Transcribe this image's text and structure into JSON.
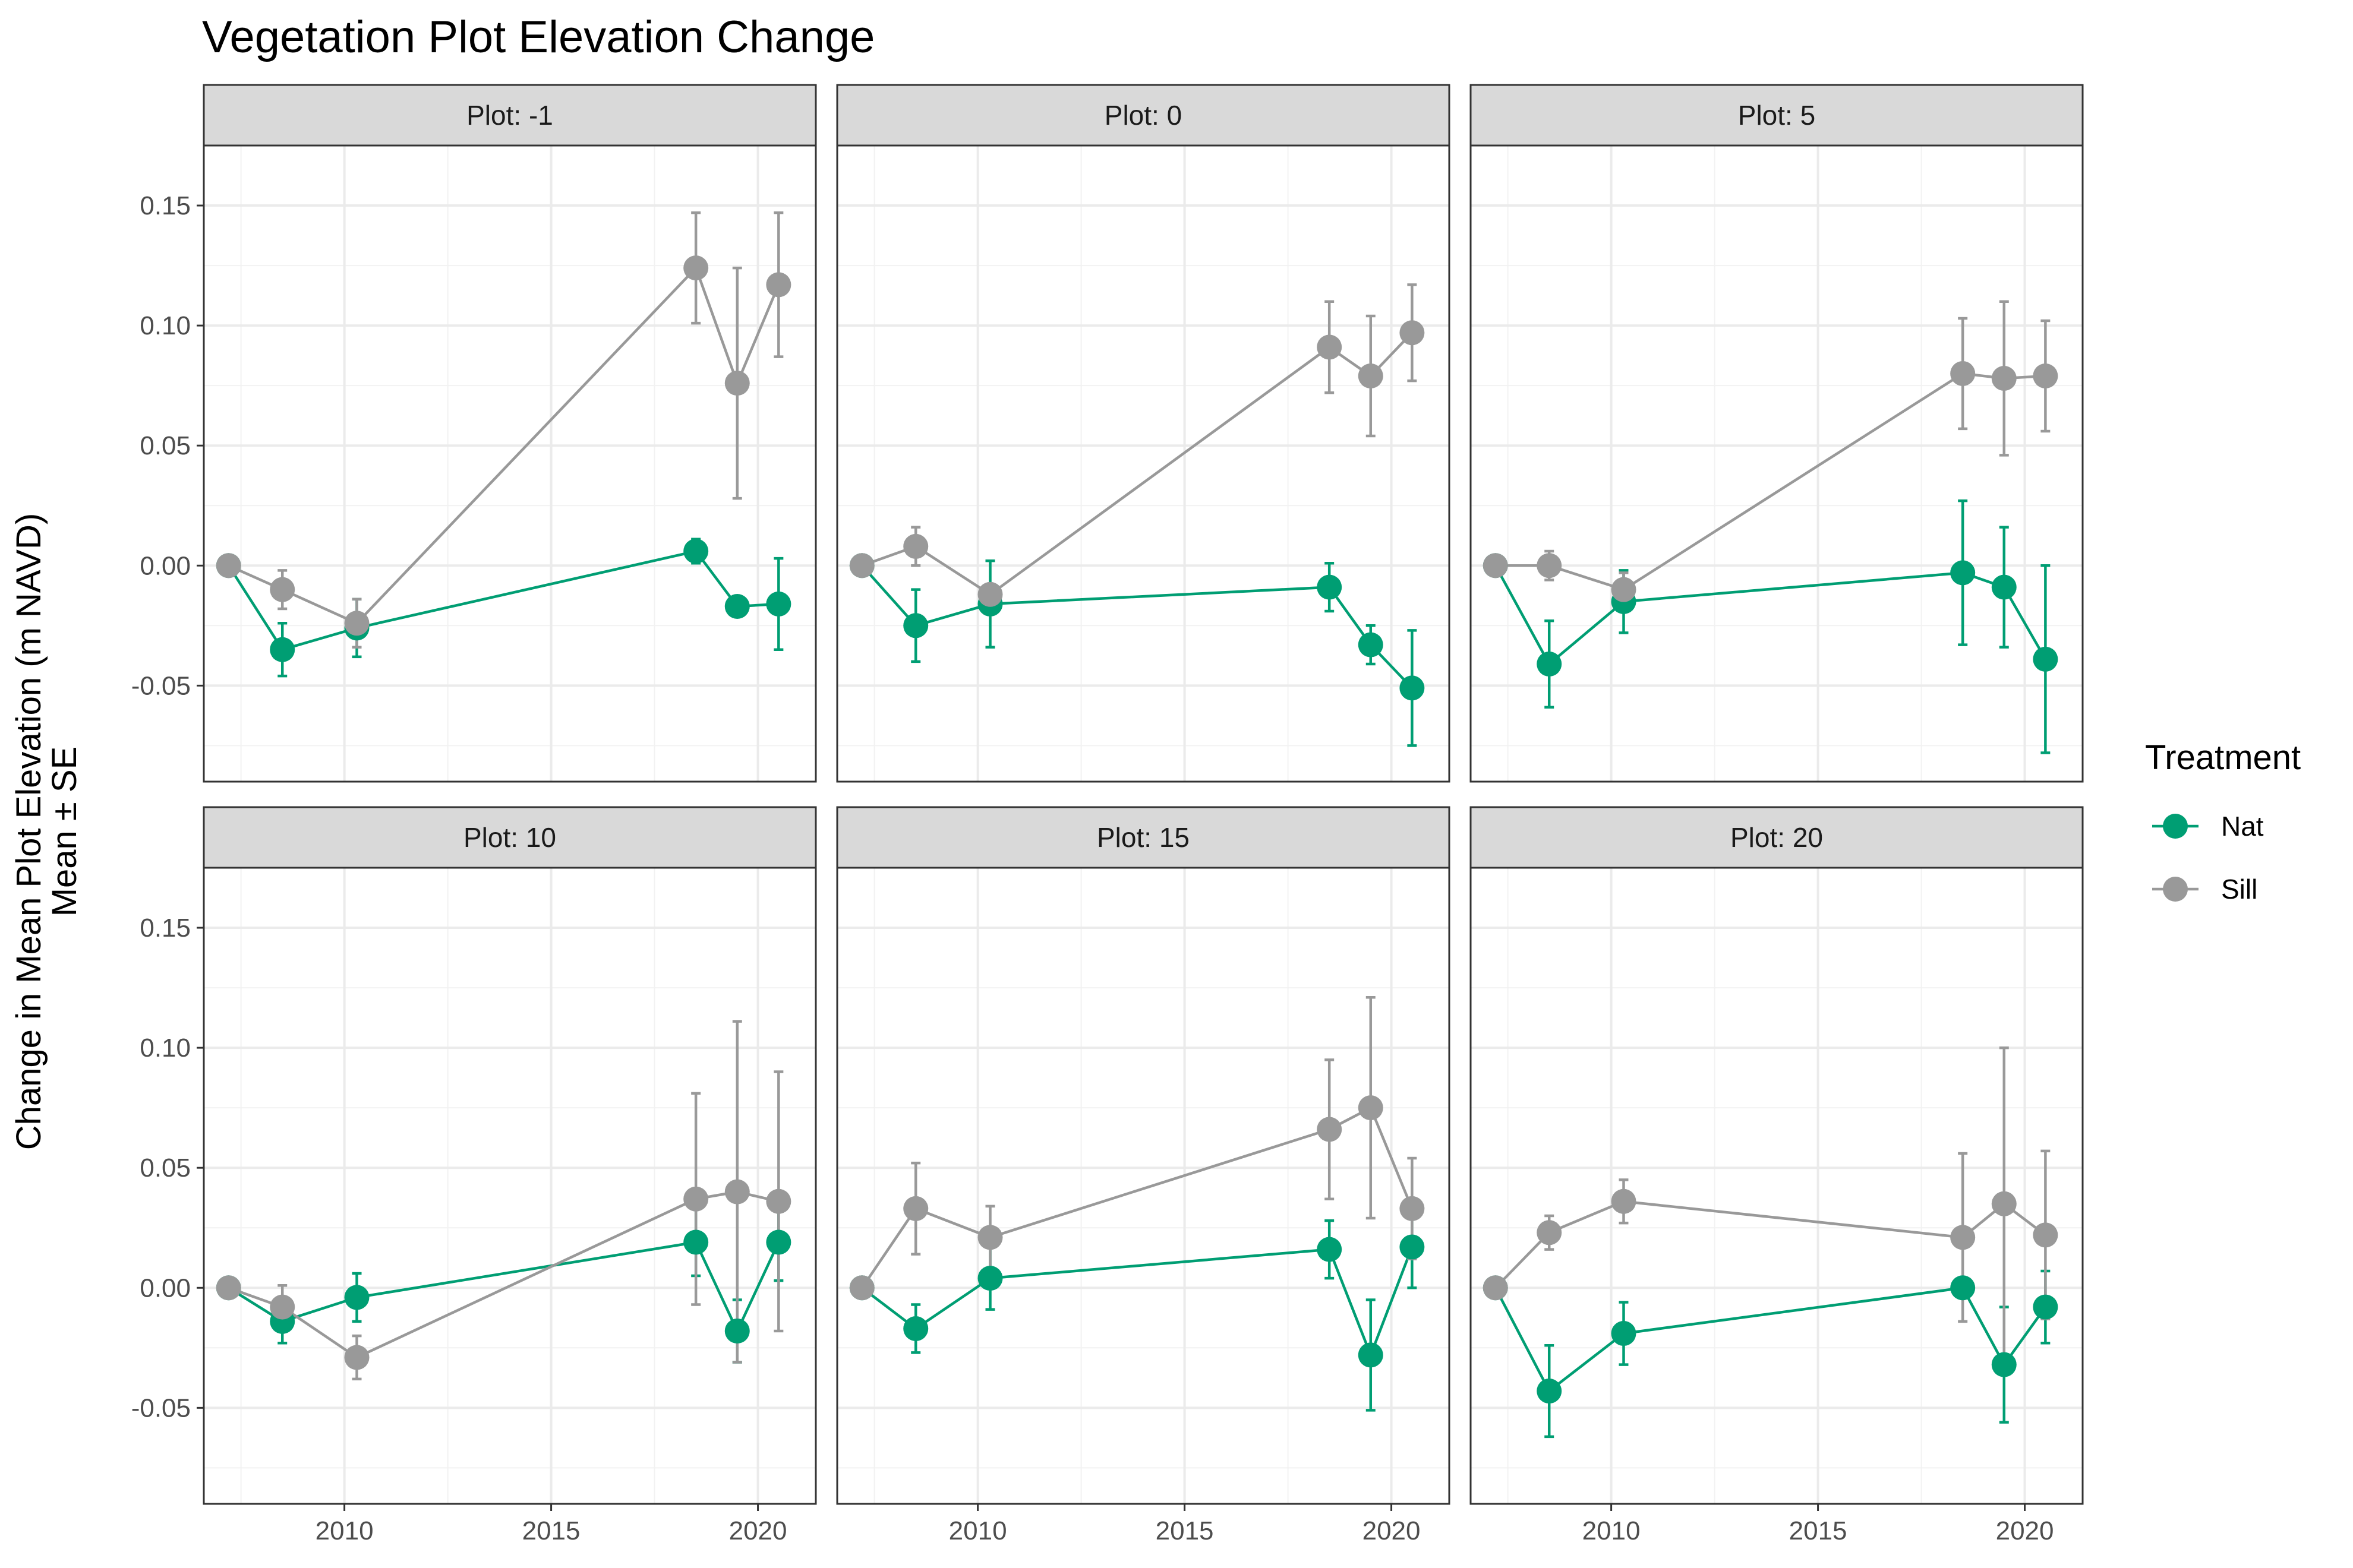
{
  "chart_data": {
    "type": "line",
    "title": "Vegetation Plot Elevation Change",
    "ylabel_line1": "Change in Mean Plot Elevation (m NAVD)",
    "ylabel_line2": "Mean ± SE",
    "xlabel": "",
    "xlim": [
      2006.6,
      2021.4
    ],
    "ylim": [
      -0.09,
      0.175
    ],
    "x_ticks": [
      2010,
      2015,
      2020
    ],
    "x_tick_labels": [
      "2010",
      "2015",
      "2020"
    ],
    "y_ticks": [
      -0.05,
      0.0,
      0.05,
      0.1,
      0.15
    ],
    "y_tick_labels": [
      "-0.05",
      "0.00",
      "0.05",
      "0.10",
      "0.15"
    ],
    "grid": true,
    "legend": {
      "title": "Treatment",
      "position": "right",
      "entries": [
        {
          "name": "Nat",
          "color": "#009E73"
        },
        {
          "name": "Sill",
          "color": "#999999"
        }
      ]
    },
    "x": [
      2007.2,
      2008.5,
      2010.3,
      2018.5,
      2019.5,
      2020.5
    ],
    "panels": [
      {
        "strip": "Plot: -1",
        "series": [
          {
            "name": "Nat",
            "color": "#009E73",
            "values": [
              0.0,
              -0.035,
              -0.026,
              0.006,
              -0.017,
              -0.016
            ],
            "se": [
              0,
              0.011,
              0.012,
              0.005,
              0,
              0.019
            ]
          },
          {
            "name": "Sill",
            "color": "#999999",
            "values": [
              0.0,
              -0.01,
              -0.024,
              0.124,
              0.076,
              0.117
            ],
            "se": [
              0,
              0.008,
              0.01,
              0.023,
              0.048,
              0.03
            ]
          }
        ]
      },
      {
        "strip": "Plot: 0",
        "series": [
          {
            "name": "Nat",
            "color": "#009E73",
            "values": [
              0.0,
              -0.025,
              -0.016,
              -0.009,
              -0.033,
              -0.051
            ],
            "se": [
              0,
              0.015,
              0.018,
              0.01,
              0.008,
              0.024
            ]
          },
          {
            "name": "Sill",
            "color": "#999999",
            "values": [
              0.0,
              0.008,
              -0.012,
              0.091,
              0.079,
              0.097
            ],
            "se": [
              0,
              0.008,
              0,
              0.019,
              0.025,
              0.02
            ]
          }
        ]
      },
      {
        "strip": "Plot: 5",
        "series": [
          {
            "name": "Nat",
            "color": "#009E73",
            "values": [
              0.0,
              -0.041,
              -0.015,
              -0.003,
              -0.009,
              -0.039
            ],
            "se": [
              0,
              0.018,
              0.013,
              0.03,
              0.025,
              0.039
            ]
          },
          {
            "name": "Sill",
            "color": "#999999",
            "values": [
              0.0,
              0.0,
              -0.01,
              0.08,
              0.078,
              0.079
            ],
            "se": [
              0,
              0.006,
              0.007,
              0.023,
              0.032,
              0.023
            ]
          }
        ]
      },
      {
        "strip": "Plot: 10",
        "series": [
          {
            "name": "Nat",
            "color": "#009E73",
            "values": [
              0.0,
              -0.014,
              -0.004,
              0.019,
              -0.018,
              0.019
            ],
            "se": [
              0,
              0.009,
              0.01,
              0.014,
              0.013,
              0.016
            ]
          },
          {
            "name": "Sill",
            "color": "#999999",
            "values": [
              0.0,
              -0.008,
              -0.029,
              0.037,
              0.04,
              0.036
            ],
            "se": [
              0,
              0.009,
              0.009,
              0.044,
              0.071,
              0.054
            ]
          }
        ]
      },
      {
        "strip": "Plot: 15",
        "series": [
          {
            "name": "Nat",
            "color": "#009E73",
            "values": [
              0.0,
              -0.017,
              0.004,
              0.016,
              -0.028,
              0.017
            ],
            "se": [
              0,
              0.01,
              0.013,
              0.012,
              0.023,
              0.017
            ]
          },
          {
            "name": "Sill",
            "color": "#999999",
            "values": [
              0.0,
              0.033,
              0.021,
              0.066,
              0.075,
              0.033
            ],
            "se": [
              0,
              0.019,
              0.013,
              0.029,
              0.046,
              0.021
            ]
          }
        ]
      },
      {
        "strip": "Plot: 20",
        "series": [
          {
            "name": "Nat",
            "color": "#009E73",
            "values": [
              0.0,
              -0.043,
              -0.019,
              0.0,
              -0.032,
              -0.008
            ],
            "se": [
              0,
              0.019,
              0.013,
              0,
              0.024,
              0.015
            ]
          },
          {
            "name": "Sill",
            "color": "#999999",
            "values": [
              0.0,
              0.023,
              0.036,
              0.021,
              0.035,
              0.022
            ],
            "se": [
              0,
              0.007,
              0.009,
              0.035,
              0.065,
              0.035
            ]
          }
        ]
      }
    ]
  }
}
